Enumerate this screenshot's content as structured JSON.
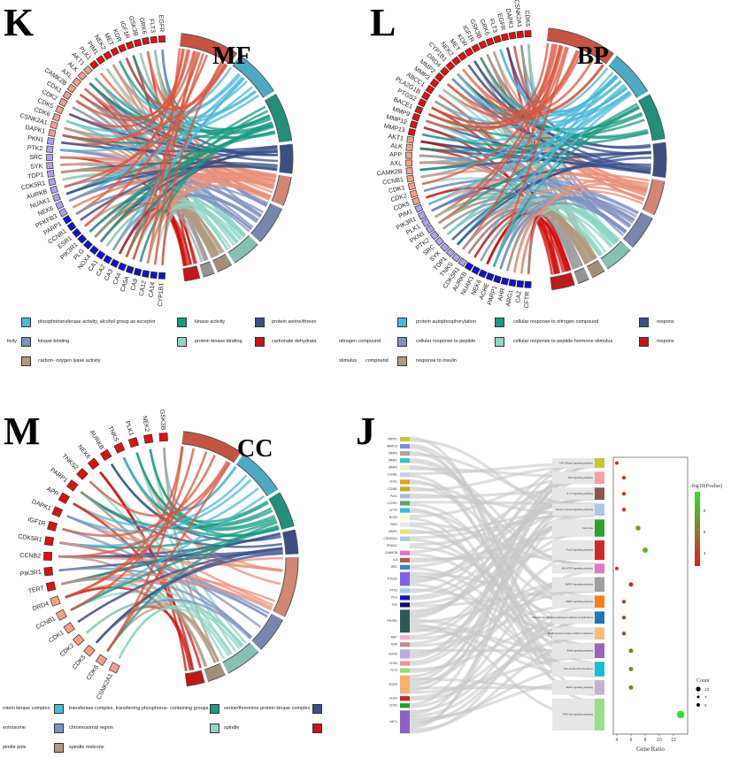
{
  "panels": {
    "K": {
      "letter": "K",
      "title": "MF",
      "genes": [
        "EGFR",
        "FLT3",
        "GRK6",
        "GSK3B",
        "IGF1R",
        "KDR",
        "MET",
        "NEK2",
        "PIM1",
        "PLK1",
        "AKT1",
        "ALK",
        "AXL",
        "CAMK2B",
        "CDK1",
        "CDK2",
        "CDK5",
        "CDK6",
        "CSNK2A1",
        "DAPK1",
        "PKN1",
        "PTK2",
        "SRC",
        "SYK",
        "TOP1",
        "CDK5R1",
        "AURKB",
        "NUAK1",
        "NEK6",
        "PFKFB3",
        "PARP1",
        "CCNB1",
        "ESR1",
        "PIK3R1",
        "PLG",
        "NOX4",
        "CA1",
        "CA2",
        "CA3",
        "CA4",
        "CA5A",
        "CA9",
        "CA12",
        "CA14",
        "CYP1B1"
      ],
      "gene_group_sizes": [
        10,
        10,
        10,
        15
      ],
      "gene_group_colors": [
        "#e01010",
        "#f0a08a",
        "#b0a0e8",
        "#1010d0"
      ],
      "term_colors": [
        "#d9553f",
        "#4db8d8",
        "#1a9a80",
        "#3a4f8a",
        "#e8907a",
        "#8090c0",
        "#8fd4c4",
        "#b09a80",
        "#a0a0a0",
        "#d01010"
      ],
      "term_sizes": [
        6,
        5,
        5,
        3,
        3,
        4,
        3,
        1.6,
        1.2,
        1.6
      ],
      "legend": {
        "fragments": [
          "tivity"
        ],
        "items": [
          {
            "label": "phosphotransferase activity, alcohol group as acceptor",
            "color": "#4db8d8"
          },
          {
            "label": "kinase activity",
            "color": "#1a9a80"
          },
          {
            "label": "protein serine/threon",
            "color": "#3a4f8a"
          },
          {
            "label": "kinase binding",
            "color": "#8090c0"
          },
          {
            "label": "protein kinase binding",
            "color": "#8fd4c4"
          },
          {
            "label": "carbonate dehydrata",
            "color": "#d01010"
          },
          {
            "label": "carbon- oxygen lyase activity",
            "color": "#b09a80"
          }
        ]
      }
    },
    "L": {
      "letter": "L",
      "title": "BP",
      "genes": [
        "CDK6",
        "CSNK2A1",
        "DAPK1",
        "EGFR",
        "FLT3",
        "GRK6",
        "GSK3B",
        "IGF1R",
        "KDR",
        "MET",
        "NEK2",
        "CYP1B1",
        "DRD4",
        "MMP2",
        "MMP3",
        "ABCC1",
        "PLA2G1B",
        "PTGS2",
        "BACE1",
        "MMP9",
        "MMP12",
        "MMP13",
        "AKT1",
        "ALK",
        "APP",
        "AXL",
        "CAMK2B",
        "CCNB1",
        "CDK1",
        "CDK2",
        "CDK5",
        "PIM1",
        "PIK3R1",
        "PLK1",
        "PKN1",
        "PTK2",
        "SRC",
        "SYK",
        "TOP1",
        "TNKS",
        "CDK5R1",
        "AURKB",
        "NUAK1",
        "NEK6",
        "ACHE",
        "PARP1",
        "AHR",
        "ARG1",
        "CA2",
        "CFTR"
      ],
      "gene_group_sizes": [
        22,
        9,
        10,
        9
      ],
      "gene_group_colors": [
        "#e01010",
        "#f0a08a",
        "#b0a0e8",
        "#1010d0"
      ],
      "term_colors": [
        "#d9553f",
        "#4db8d8",
        "#1a9a80",
        "#3a4f8a",
        "#e8907a",
        "#8090c0",
        "#8fd4c4",
        "#b09a80",
        "#a0a0a0",
        "#d01010"
      ],
      "term_sizes": [
        6,
        4,
        4,
        3,
        3,
        3,
        2.5,
        1.2,
        1,
        2
      ],
      "legend": {
        "fragments": [
          "nitrogen compound",
          "stimulus",
          "compound"
        ],
        "items": [
          {
            "label": "protein autophosphorylation",
            "color": "#4db8d8"
          },
          {
            "label": "cellular response to nitrogen compound",
            "color": "#1a9a80"
          },
          {
            "label": "respons",
            "color": "#3a4f8a"
          },
          {
            "label": "cellular response to peptide",
            "color": "#8090c0"
          },
          {
            "label": "cellular response to peptide hormone stimulus",
            "color": "#8fd4c4"
          },
          {
            "label": "respons",
            "color": "#d01010"
          },
          {
            "label": "response to insulin",
            "color": "#b09a80"
          }
        ]
      }
    },
    "M": {
      "letter": "M",
      "title": "CC",
      "genes": [
        "GSK3B",
        "NEK2",
        "PLK1",
        "TNKS",
        "AURKB",
        "NEK6",
        "TNKS2",
        "PARP1",
        "APP",
        "DAPK1",
        "IGF1R",
        "CDK5R1",
        "CCNB2",
        "PIK3R1",
        "TERT",
        "DRD4",
        "CCNB1",
        "CDK1",
        "CDK2",
        "CDK5",
        "CDK6",
        "CSNK2A1"
      ],
      "gene_group_sizes": [
        15,
        7
      ],
      "gene_group_colors": [
        "#e01010",
        "#f0a08a"
      ],
      "term_colors": [
        "#d9553f",
        "#4db8d8",
        "#1a9a80",
        "#3a4f8a",
        "#e8907a",
        "#8090c0",
        "#8fd4c4",
        "#b09a80",
        "#d01010"
      ],
      "term_sizes": [
        5,
        4,
        3,
        2,
        5,
        3,
        3,
        1.5,
        1.5
      ],
      "legend": {
        "fragments": [
          "rotein kinase complex",
          "entrosome",
          "pindle pole"
        ],
        "items": [
          {
            "label": "transferase complex, transferring phosphorus- containing groups",
            "color": "#4db8d8"
          },
          {
            "label": "serine/threonine protein kinase complex",
            "color": "#1a9a80"
          },
          {
            "label": "",
            "color": "#3a4f8a"
          },
          {
            "label": "chromosomal region",
            "color": "#8090c0"
          },
          {
            "label": "spindle",
            "color": "#8fd4c4"
          },
          {
            "label": "",
            "color": "#d01010"
          },
          {
            "label": "spindle midzone",
            "color": "#b09a80"
          }
        ]
      }
    }
  },
  "J": {
    "letter": "J",
    "genes": [
      {
        "name": "PARP1",
        "color": "#c8c830",
        "count": 1
      },
      {
        "name": "MMP13",
        "color": "#7090e0",
        "count": 1
      },
      {
        "name": "MMP9",
        "color": "#b0a0a0",
        "count": 1
      },
      {
        "name": "MMP2",
        "color": "#30c0d0",
        "count": 1
      },
      {
        "name": "MMP3",
        "color": "#f0f0c0",
        "count": 1
      },
      {
        "name": "CCNB1",
        "color": "#c8d0f0",
        "count": 1
      },
      {
        "name": "CDK1",
        "color": "#e0a020",
        "count": 1
      },
      {
        "name": "CCNB2",
        "color": "#c0b020",
        "count": 1
      },
      {
        "name": "PLK1",
        "color": "#a0c0e0",
        "count": 1
      },
      {
        "name": "CCNE1",
        "color": "#60a060",
        "count": 1
      },
      {
        "name": "CFTR",
        "color": "#30c0d0",
        "count": 1
      },
      {
        "name": "NOS3",
        "color": "#f8f8d0",
        "count": 1
      },
      {
        "name": "PIM1",
        "color": "#e8e8e8",
        "count": 1
      },
      {
        "name": "MMP1",
        "color": "#e8e870",
        "count": 1
      },
      {
        "name": "CSNK2A1",
        "color": "#b0c8f0",
        "count": 1
      },
      {
        "name": "PRKDC",
        "color": "#f0fff8",
        "count": 1
      },
      {
        "name": "CAMK2B",
        "color": "#e070c0",
        "count": 1
      },
      {
        "name": "IL6",
        "color": "#a06050",
        "count": 1
      },
      {
        "name": "SRC",
        "color": "#3080e0",
        "count": 1
      },
      {
        "name": "PTGS2",
        "color": "#8060e8",
        "count": 3
      },
      {
        "name": "PTK2",
        "color": "#a0c8f0",
        "count": 1
      },
      {
        "name": "PLG",
        "color": "#1010c0",
        "count": 1
      },
      {
        "name": "TEK",
        "color": "#101060",
        "count": 1
      },
      {
        "name": "PIK3R1",
        "color": "#305858",
        "count": 5
      },
      {
        "name": "MET",
        "color": "#f0b0d0",
        "count": 1
      },
      {
        "name": "KDR",
        "color": "#c09090",
        "count": 1
      },
      {
        "name": "IGF1R",
        "color": "#c0a8e0",
        "count": 2
      },
      {
        "name": "CDK6",
        "color": "#f09090",
        "count": 1
      },
      {
        "name": "FLT3",
        "color": "#90e070",
        "count": 1
      },
      {
        "name": "EGFR",
        "color": "#f8b070",
        "count": 4
      },
      {
        "name": "CDK4",
        "color": "#d02020",
        "count": 1
      },
      {
        "name": "CDK2",
        "color": "#20a020",
        "count": 1
      },
      {
        "name": "AKT1",
        "color": "#9060c0",
        "count": 5
      }
    ],
    "pathways": [
      {
        "name": "HIF-1/Rap1 signaling pathway",
        "color": "#c8c830",
        "gene_ratio": 4,
        "neglog10p": 4,
        "count": 4
      },
      {
        "name": "TNF signaling pathway",
        "color": "#f4a0a0",
        "gene_ratio": 5,
        "neglog10p": 4.5,
        "count": 5
      },
      {
        "name": "IL-17 signaling pathway",
        "color": "#8c564b",
        "gene_ratio": 5,
        "neglog10p": 4.5,
        "count": 5
      },
      {
        "name": "Oocyte meiosis signaling pathway",
        "color": "#aec7e8",
        "gene_ratio": 5,
        "neglog10p": 4.5,
        "count": 5
      },
      {
        "name": "Cell cycle",
        "color": "#2ca02c",
        "gene_ratio": 7,
        "neglog10p": 7,
        "count": 7
      },
      {
        "name": "FoxO signaling pathway",
        "color": "#d62728",
        "gene_ratio": 8,
        "neglog10p": 7.5,
        "count": 8
      },
      {
        "name": "JAK-STAT signaling pathway",
        "color": "#e377c2",
        "gene_ratio": 4,
        "neglog10p": 3.5,
        "count": 4
      },
      {
        "name": "MAPK signaling pathway",
        "color": "#a0a0a0",
        "gene_ratio": 6,
        "neglog10p": 3.5,
        "count": 6
      },
      {
        "name": "AMPK signaling pathway",
        "color": "#ff7f0e",
        "gene_ratio": 5,
        "neglog10p": 4.5,
        "count": 5
      },
      {
        "name": "AGE-RAGE signaling pathway in diabetic complications",
        "color": "#1f77b4",
        "gene_ratio": 5,
        "neglog10p": 4.5,
        "count": 5
      },
      {
        "name": "EGFR tyrosine kinase inhibitor resistance",
        "color": "#ffbb78",
        "gene_ratio": 5,
        "neglog10p": 4.5,
        "count": 5
      },
      {
        "name": "ErbB signaling pathway",
        "color": "#9467bd",
        "gene_ratio": 6,
        "neglog10p": 6,
        "count": 6
      },
      {
        "name": "Non-small cell lung cancer",
        "color": "#17becf",
        "gene_ratio": 6,
        "neglog10p": 6,
        "count": 6
      },
      {
        "name": "VEGF signaling pathway",
        "color": "#c5b0d5",
        "gene_ratio": 6,
        "neglog10p": 6,
        "count": 6
      },
      {
        "name": "PI3K-Akt signaling pathway",
        "color": "#98df8a",
        "gene_ratio": 13,
        "neglog10p": 9,
        "count": 13
      }
    ],
    "xlabel": "Gene Ratio",
    "xticks": [
      "4",
      "6",
      "8",
      "10",
      "12"
    ],
    "xlim": [
      3.5,
      14
    ],
    "colorbar": {
      "title": "-log10(Pvalue)",
      "ticks": [
        "8",
        "6",
        "4"
      ],
      "low_color": "#d62020",
      "high_color": "#30e030"
    },
    "size_legend": {
      "title": "Count",
      "ticks": [
        "13",
        "7",
        "8"
      ]
    }
  }
}
